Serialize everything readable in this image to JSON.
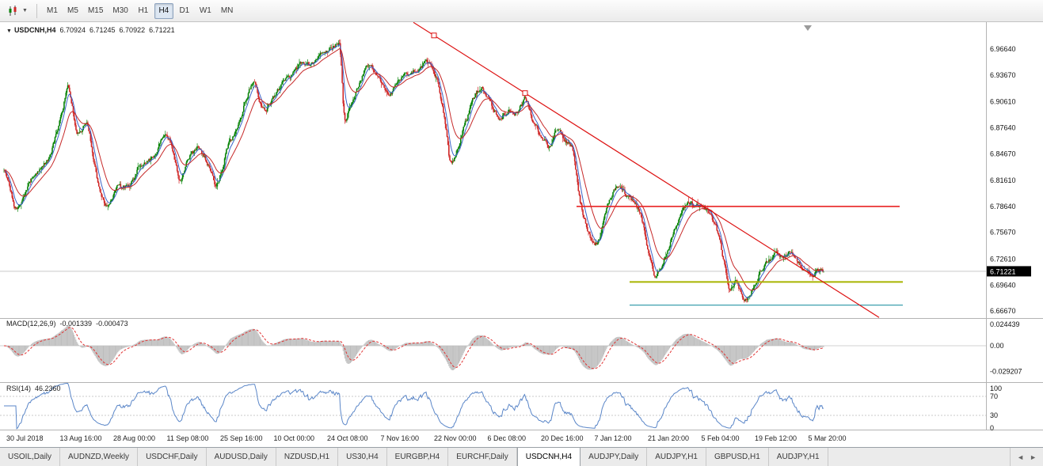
{
  "toolbar": {
    "chart_type_icon": "candlestick-chart",
    "dropdown_caret": "▼",
    "timeframes": [
      "M1",
      "M5",
      "M15",
      "M30",
      "H1",
      "H4",
      "D1",
      "W1",
      "MN"
    ],
    "active_timeframe": "H4"
  },
  "chart_header": {
    "collapse_arrow": "▼",
    "symbol": "USDCNH,H4",
    "open": "6.70924",
    "high": "6.71245",
    "low": "6.70922",
    "close": "6.71221"
  },
  "price_axis": {
    "labels": [
      "6.96640",
      "6.93670",
      "6.90610",
      "6.87640",
      "6.84670",
      "6.81610",
      "6.78640",
      "6.75670",
      "6.72610",
      "6.69640",
      "6.66670"
    ],
    "current_price": "6.71221"
  },
  "macd_panel": {
    "label": "MACD(12,26,9)",
    "value_main": "-0.001339",
    "value_signal": "-0.000473",
    "axis_labels": [
      "0.024439",
      "0.00",
      "-0.029207"
    ],
    "axis_values": [
      0.024439,
      0,
      -0.029207
    ]
  },
  "rsi_panel": {
    "label": "RSI(14)",
    "value": "46.2360",
    "axis_labels": [
      "100",
      "70",
      "30",
      "0"
    ],
    "axis_values": [
      100,
      70,
      30,
      0
    ]
  },
  "time_axis": {
    "labels": [
      "30 Jul 2018",
      "13 Aug 16:00",
      "28 Aug 00:00",
      "11 Sep 08:00",
      "25 Sep 16:00",
      "10 Oct 00:00",
      "24 Oct 08:00",
      "7 Nov 16:00",
      "22 Nov 00:00",
      "6 Dec 08:00",
      "20 Dec 16:00",
      "7 Jan 12:00",
      "21 Jan 20:00",
      "5 Feb 04:00",
      "19 Feb 12:00",
      "5 Mar 20:00"
    ]
  },
  "tabs": {
    "items": [
      "USOIL,Daily",
      "AUDNZD,Weekly",
      "USDCHF,Daily",
      "AUDUSD,Daily",
      "NZDUSD,H1",
      "US30,H4",
      "EURGBP,H4",
      "EURCHF,Daily",
      "USDCNH,H4",
      "AUDJPY,Daily",
      "AUDJPY,H1",
      "GBPUSD,H1",
      "AUDJPY,H1"
    ],
    "active_index": 8,
    "scroll_left": "◄",
    "scroll_right": "►"
  },
  "chart_data": {
    "type": "candlestick",
    "symbol": "USDCNH",
    "timeframe": "H4",
    "ohlc_current": {
      "open": 6.70924,
      "high": 6.71245,
      "low": 6.70922,
      "close": 6.71221
    },
    "ylim": [
      6.6587,
      6.9972
    ],
    "bars": 900,
    "price_path": [
      [
        0.0,
        6.828
      ],
      [
        0.013,
        6.78
      ],
      [
        0.032,
        6.819
      ],
      [
        0.053,
        6.841
      ],
      [
        0.07,
        6.896
      ],
      [
        0.077,
        6.937
      ],
      [
        0.087,
        6.864
      ],
      [
        0.1,
        6.886
      ],
      [
        0.113,
        6.809
      ],
      [
        0.124,
        6.785
      ],
      [
        0.138,
        6.812
      ],
      [
        0.15,
        6.805
      ],
      [
        0.164,
        6.837
      ],
      [
        0.179,
        6.841
      ],
      [
        0.193,
        6.869
      ],
      [
        0.203,
        6.855
      ],
      [
        0.213,
        6.809
      ],
      [
        0.224,
        6.846
      ],
      [
        0.237,
        6.855
      ],
      [
        0.248,
        6.832
      ],
      [
        0.258,
        6.807
      ],
      [
        0.271,
        6.855
      ],
      [
        0.283,
        6.878
      ],
      [
        0.295,
        6.914
      ],
      [
        0.304,
        6.932
      ],
      [
        0.314,
        6.889
      ],
      [
        0.326,
        6.909
      ],
      [
        0.338,
        6.93
      ],
      [
        0.351,
        6.939
      ],
      [
        0.362,
        6.954
      ],
      [
        0.374,
        6.946
      ],
      [
        0.385,
        6.961
      ],
      [
        0.396,
        6.968
      ],
      [
        0.409,
        6.977
      ],
      [
        0.414,
        6.862
      ],
      [
        0.42,
        6.902
      ],
      [
        0.428,
        6.917
      ],
      [
        0.438,
        6.943
      ],
      [
        0.444,
        6.952
      ],
      [
        0.457,
        6.928
      ],
      [
        0.469,
        6.912
      ],
      [
        0.48,
        6.932
      ],
      [
        0.493,
        6.939
      ],
      [
        0.505,
        6.946
      ],
      [
        0.517,
        6.952
      ],
      [
        0.529,
        6.925
      ],
      [
        0.536,
        6.887
      ],
      [
        0.543,
        6.825
      ],
      [
        0.551,
        6.851
      ],
      [
        0.56,
        6.878
      ],
      [
        0.572,
        6.914
      ],
      [
        0.582,
        6.925
      ],
      [
        0.592,
        6.905
      ],
      [
        0.602,
        6.885
      ],
      [
        0.614,
        6.898
      ],
      [
        0.625,
        6.894
      ],
      [
        0.635,
        6.912
      ],
      [
        0.644,
        6.882
      ],
      [
        0.654,
        6.867
      ],
      [
        0.664,
        6.852
      ],
      [
        0.673,
        6.876
      ],
      [
        0.683,
        6.861
      ],
      [
        0.693,
        6.852
      ],
      [
        0.7,
        6.792
      ],
      [
        0.708,
        6.764
      ],
      [
        0.718,
        6.74
      ],
      [
        0.726,
        6.751
      ],
      [
        0.734,
        6.789
      ],
      [
        0.742,
        6.805
      ],
      [
        0.751,
        6.81
      ],
      [
        0.758,
        6.798
      ],
      [
        0.768,
        6.789
      ],
      [
        0.776,
        6.776
      ],
      [
        0.786,
        6.724
      ],
      [
        0.793,
        6.704
      ],
      [
        0.802,
        6.724
      ],
      [
        0.81,
        6.742
      ],
      [
        0.818,
        6.764
      ],
      [
        0.826,
        6.78
      ],
      [
        0.834,
        6.794
      ],
      [
        0.842,
        6.783
      ],
      [
        0.851,
        6.789
      ],
      [
        0.86,
        6.776
      ],
      [
        0.868,
        6.76
      ],
      [
        0.876,
        6.724
      ],
      [
        0.884,
        6.689
      ],
      [
        0.892,
        6.704
      ],
      [
        0.9,
        6.676
      ],
      [
        0.908,
        6.686
      ],
      [
        0.916,
        6.704
      ],
      [
        0.925,
        6.717
      ],
      [
        0.932,
        6.724
      ],
      [
        0.942,
        6.733
      ],
      [
        0.95,
        6.726
      ],
      [
        0.958,
        6.735
      ],
      [
        0.967,
        6.724
      ],
      [
        0.976,
        6.713
      ],
      [
        0.984,
        6.708
      ],
      [
        0.993,
        6.715
      ],
      [
        1.0,
        6.7122
      ]
    ],
    "overlays": {
      "trendline": {
        "color": "#dd1111",
        "start_x": 522,
        "extend_to_x": 1110,
        "anchors_x": [
          548,
          663
        ],
        "anchors_price": [
          6.982,
          6.916
        ]
      },
      "hlines": [
        {
          "price": 6.7864,
          "color": "#e82222",
          "x1": 728,
          "x2": 1136,
          "width": 1.6
        },
        {
          "price": 6.7,
          "color": "#a8b400",
          "x1": 795,
          "x2": 1140,
          "width": 2
        },
        {
          "price": 6.6735,
          "color": "#3d9fae",
          "x1": 795,
          "x2": 1140,
          "width": 1.2
        }
      ],
      "current_price_line": 6.71221
    },
    "indicators": {
      "macd": {
        "params": [
          12,
          26,
          9
        ],
        "main": -0.001339,
        "signal": -0.000473,
        "axis_max": 0.024439,
        "axis_min": -0.029207
      },
      "rsi": {
        "period": 14,
        "value": 46.236,
        "levels": [
          70,
          30
        ]
      }
    },
    "ma_lines": [
      {
        "type": "ema",
        "period": 7,
        "color": "#3a62c8"
      },
      {
        "type": "ema",
        "period": 21,
        "color": "#c62828"
      }
    ],
    "colors": {
      "up": "#068206",
      "down": "#cf2626",
      "macd_hist": "#bdbdbd",
      "macd_signal": "#e03232",
      "rsi": "#5a86c8",
      "grid": "#c9c9c9",
      "axis_text": "#111111",
      "badge_bg": "#000000",
      "badge_text": "#ffffff"
    }
  },
  "render": {
    "seed": 11,
    "step_noise": 0.005,
    "wick_noise": 0.006,
    "reversion": 0.35
  },
  "misc": {
    "shift_marker_x": 1020
  }
}
